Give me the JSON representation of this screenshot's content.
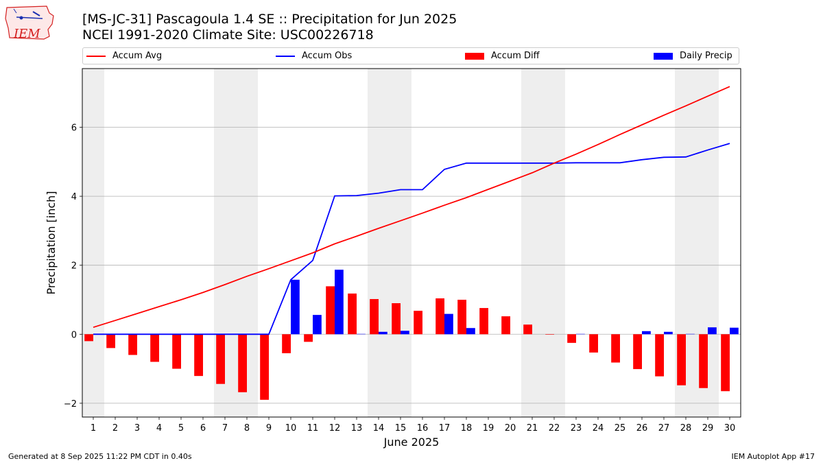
{
  "header": {
    "title_line1": "[MS-JC-31] Pascagoula 1.4 SE :: Precipitation for Jun 2025",
    "title_line2": "NCEI 1991-2020 Climate Site: USC00226718"
  },
  "logo": {
    "text": "IEM"
  },
  "legend": [
    {
      "label": "Accum Avg",
      "kind": "line",
      "color": "#ff0000"
    },
    {
      "label": "Accum Obs",
      "kind": "line",
      "color": "#0000ff"
    },
    {
      "label": "Accum Diff",
      "kind": "box",
      "color": "#ff0000"
    },
    {
      "label": "Daily Precip",
      "kind": "box",
      "color": "#0000ff"
    }
  ],
  "footer": {
    "left": "Generated at 8 Sep 2025 11:22 PM CDT in 0.40s",
    "right": "IEM Autoplot App #17"
  },
  "chart_data": {
    "type": "bar",
    "xlabel": "June 2025",
    "ylabel": "Precipitation [inch]",
    "xlim": [
      0.5,
      30.5
    ],
    "ylim": [
      -2.4,
      7.7
    ],
    "yticks": [
      -2,
      0,
      2,
      4,
      6
    ],
    "grid": "horizontal",
    "legend_placement": "top",
    "days": [
      1,
      2,
      3,
      4,
      5,
      6,
      7,
      8,
      9,
      10,
      11,
      12,
      13,
      14,
      15,
      16,
      17,
      18,
      19,
      20,
      21,
      22,
      23,
      24,
      25,
      26,
      27,
      28,
      29,
      30
    ],
    "weekend_shading": [
      [
        0.5,
        1.5
      ],
      [
        6.5,
        8.5
      ],
      [
        13.5,
        15.5
      ],
      [
        20.5,
        22.5
      ],
      [
        27.5,
        29.5
      ]
    ],
    "series": [
      {
        "name": "Accum Avg",
        "kind": "line",
        "color": "#ff0000",
        "values": [
          0.2,
          0.4,
          0.6,
          0.8,
          1.0,
          1.21,
          1.44,
          1.68,
          1.9,
          2.13,
          2.36,
          2.62,
          2.84,
          3.07,
          3.29,
          3.51,
          3.74,
          3.96,
          4.2,
          4.44,
          4.68,
          4.96,
          5.22,
          5.5,
          5.79,
          6.07,
          6.35,
          6.62,
          6.9,
          7.18
        ]
      },
      {
        "name": "Accum Obs",
        "kind": "line",
        "color": "#0000ff",
        "values": [
          0,
          0,
          0,
          0,
          0,
          0,
          0,
          0,
          0,
          1.58,
          2.14,
          4.01,
          4.02,
          4.09,
          4.19,
          4.19,
          4.78,
          4.96,
          4.96,
          4.96,
          4.96,
          4.96,
          4.97,
          4.97,
          4.97,
          5.06,
          5.13,
          5.14,
          5.34,
          5.53
        ]
      },
      {
        "name": "Accum Diff",
        "kind": "bar",
        "color": "#ff0000",
        "values": [
          -0.2,
          -0.4,
          -0.6,
          -0.8,
          -1.0,
          -1.21,
          -1.44,
          -1.68,
          -1.9,
          -0.55,
          -0.22,
          1.39,
          1.18,
          1.02,
          0.9,
          0.68,
          1.04,
          1.0,
          0.76,
          0.52,
          0.28,
          0.0,
          -0.25,
          -0.53,
          -0.82,
          -1.01,
          -1.22,
          -1.48,
          -1.56,
          -1.65
        ]
      },
      {
        "name": "Daily Precip",
        "kind": "bar",
        "color": "#0000ff",
        "values": [
          0,
          0,
          0,
          0,
          0,
          0,
          0,
          0,
          0,
          1.58,
          0.56,
          1.87,
          0.01,
          0.07,
          0.1,
          0,
          0.59,
          0.18,
          0,
          0,
          0,
          0,
          0.01,
          0,
          0,
          0.09,
          0.07,
          0.01,
          0.2,
          0.19
        ]
      }
    ]
  }
}
